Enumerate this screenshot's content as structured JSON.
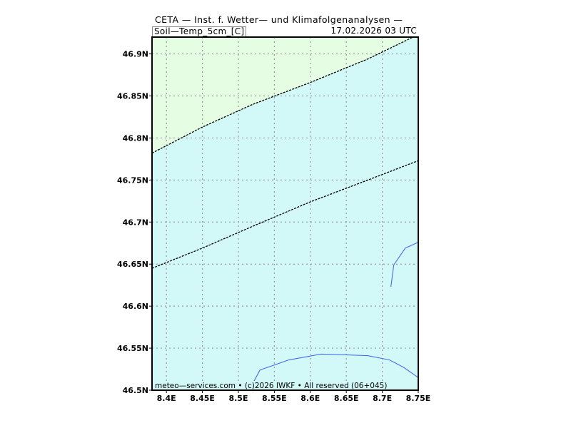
{
  "header": {
    "title": "CETA — Inst. f. Wetter— und Klimafolgenanalysen —",
    "variable": "Soil—Temp_5cm_[C]",
    "timestamp": "17.02.2026  03 UTC"
  },
  "credit": "meteo—services.com • (c)2026 IWKF • All reserved (06+045)",
  "map": {
    "lon_range": [
      8.38,
      8.75
    ],
    "lat_range": [
      46.5,
      46.92
    ],
    "lat_ticks": [
      {
        "value": 46.9,
        "label": "46.9N"
      },
      {
        "value": 46.85,
        "label": "46.85N"
      },
      {
        "value": 46.8,
        "label": "46.8N"
      },
      {
        "value": 46.75,
        "label": "46.75N"
      },
      {
        "value": 46.7,
        "label": "46.7N"
      },
      {
        "value": 46.65,
        "label": "46.65N"
      },
      {
        "value": 46.6,
        "label": "46.6N"
      },
      {
        "value": 46.55,
        "label": "46.55N"
      },
      {
        "value": 46.5,
        "label": "46.5N"
      }
    ],
    "lon_ticks": [
      {
        "value": 8.4,
        "label": "8.4E"
      },
      {
        "value": 8.45,
        "label": "8.45E"
      },
      {
        "value": 8.5,
        "label": "8.5E"
      },
      {
        "value": 8.55,
        "label": "8.55E"
      },
      {
        "value": 8.6,
        "label": "8.6E"
      },
      {
        "value": 8.65,
        "label": "8.65E"
      },
      {
        "value": 8.7,
        "label": "8.7E"
      },
      {
        "value": 8.75,
        "label": "8.75E"
      }
    ],
    "grid": true,
    "colors": {
      "warm_fill": "#e5fde2",
      "cool_fill": "#d2f8f8",
      "grid": "#9a9a9a",
      "contour": "#000000",
      "boundary": "#3b5ff0"
    },
    "contours": [
      {
        "points": [
          [
            8.38,
            46.782
          ],
          [
            8.45,
            46.813
          ],
          [
            8.52,
            46.84
          ],
          [
            8.6,
            46.866
          ],
          [
            8.68,
            46.894
          ],
          [
            8.75,
            46.923
          ]
        ]
      },
      {
        "points": [
          [
            8.38,
            46.645
          ],
          [
            8.45,
            46.669
          ],
          [
            8.52,
            46.695
          ],
          [
            8.6,
            46.724
          ],
          [
            8.68,
            46.75
          ],
          [
            8.75,
            46.773
          ]
        ]
      }
    ],
    "boundaries": [
      {
        "points": [
          [
            8.51,
            46.5
          ],
          [
            8.52,
            46.508
          ],
          [
            8.53,
            46.524
          ],
          [
            8.57,
            46.536
          ],
          [
            8.615,
            46.543
          ],
          [
            8.65,
            46.542
          ],
          [
            8.68,
            46.541
          ],
          [
            8.71,
            46.536
          ],
          [
            8.73,
            46.527
          ],
          [
            8.75,
            46.515
          ]
        ]
      },
      {
        "points": [
          [
            8.712,
            46.623
          ],
          [
            8.716,
            46.649
          ],
          [
            8.732,
            46.669
          ],
          [
            8.75,
            46.676
          ]
        ]
      }
    ]
  }
}
